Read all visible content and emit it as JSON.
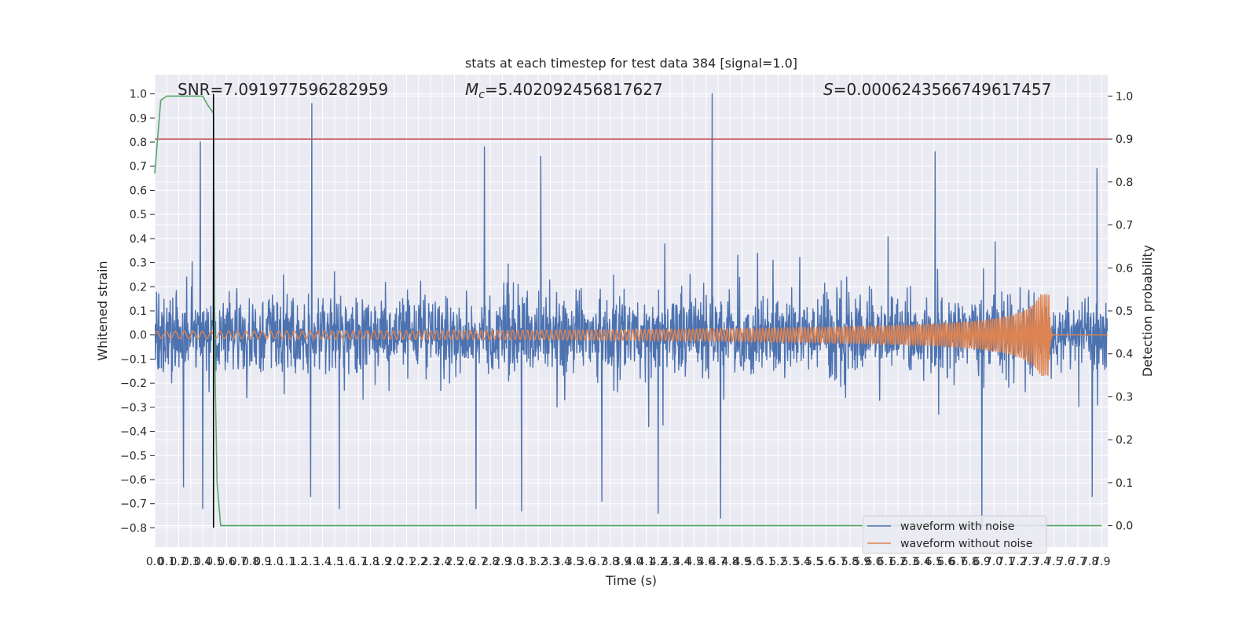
{
  "chart_data": {
    "type": "line",
    "title": "stats at each timestep for test data 384 [signal=1.0]",
    "xlabel": "Time (s)",
    "ylabel": "Whitened strain",
    "ylabel_right": "Detection probability",
    "xlim": [
      0.0,
      7.95
    ],
    "ylim": [
      -0.88,
      1.08
    ],
    "ylim_right": [
      -0.05,
      1.05
    ],
    "x_ticks": [
      0.0,
      0.1,
      0.2,
      0.3,
      0.4,
      0.5,
      0.6,
      0.7,
      0.8,
      0.9,
      1.0,
      1.1,
      1.2,
      1.3,
      1.4,
      1.5,
      1.6,
      1.7,
      1.8,
      1.9,
      2.0,
      2.1,
      2.2,
      2.3,
      2.4,
      2.5,
      2.6,
      2.7,
      2.8,
      2.9,
      3.0,
      3.1,
      3.2,
      3.3,
      3.4,
      3.5,
      3.6,
      3.7,
      3.8,
      3.9,
      4.0,
      4.1,
      4.2,
      4.3,
      4.4,
      4.5,
      4.6,
      4.7,
      4.8,
      4.9,
      5.0,
      5.1,
      5.2,
      5.3,
      5.4,
      5.5,
      5.6,
      5.7,
      5.8,
      5.9,
      6.0,
      6.1,
      6.2,
      6.3,
      6.4,
      6.5,
      6.6,
      6.7,
      6.8,
      6.9,
      7.0,
      7.1,
      7.2,
      7.3,
      7.4,
      7.5,
      7.6,
      7.7,
      7.8,
      7.9
    ],
    "y_ticks": [
      -0.8,
      -0.7,
      -0.6,
      -0.5,
      -0.4,
      -0.3,
      -0.2,
      -0.1,
      0.0,
      0.1,
      0.2,
      0.3,
      0.4,
      0.5,
      0.6,
      0.7,
      0.8,
      0.9,
      1.0
    ],
    "y_ticks_right": [
      0.0,
      0.1,
      0.2,
      0.3,
      0.4,
      0.5,
      0.6,
      0.7,
      0.8,
      0.9,
      1.0
    ],
    "grid": true,
    "legend_position": "lower-right",
    "annotations": {
      "snr": "SNR=7.091977596282959",
      "mc_symbol": "M",
      "mc_sub": "c",
      "mc_value": "=5.402092456817627",
      "s_symbol": "S",
      "s_value": "=0.0006243566749617457"
    },
    "series": [
      {
        "name": "waveform with noise",
        "color": "#4c72b0",
        "note_kind": "noise",
        "amplitude_envelope": 0.42,
        "peaks": [
          {
            "x": 0.38,
            "y": 0.8
          },
          {
            "x": 0.49,
            "y": 0.81
          },
          {
            "x": 1.31,
            "y": 0.96
          },
          {
            "x": 2.75,
            "y": 0.78
          },
          {
            "x": 3.22,
            "y": 0.74
          },
          {
            "x": 4.65,
            "y": 1.0
          },
          {
            "x": 6.51,
            "y": 0.76
          },
          {
            "x": 7.86,
            "y": 0.69
          },
          {
            "x": 0.24,
            "y": -0.63
          },
          {
            "x": 0.4,
            "y": -0.72
          },
          {
            "x": 1.3,
            "y": -0.67
          },
          {
            "x": 1.54,
            "y": -0.72
          },
          {
            "x": 2.68,
            "y": -0.72
          },
          {
            "x": 3.06,
            "y": -0.73
          },
          {
            "x": 3.73,
            "y": -0.69
          },
          {
            "x": 4.2,
            "y": -0.74
          },
          {
            "x": 4.72,
            "y": -0.76
          },
          {
            "x": 6.9,
            "y": -0.8
          },
          {
            "x": 7.82,
            "y": -0.67
          }
        ]
      },
      {
        "name": "waveform without noise",
        "color": "#dd8452",
        "note_kind": "chirp",
        "start_amplitude": 0.015,
        "peak_amplitude": 0.17,
        "merger_time": 7.46,
        "start_frequency_hz": 13,
        "end_frequency_hz": 60
      },
      {
        "name": "",
        "axis": "right",
        "color": "#55a868",
        "x": [
          0.0,
          0.05,
          0.1,
          0.2,
          0.3,
          0.4,
          0.44,
          0.49,
          0.5,
          0.52,
          0.55,
          0.6,
          2.9,
          3.0,
          7.9
        ],
        "values": [
          0.82,
          0.99,
          1.0,
          1.0,
          1.0,
          1.0,
          0.98,
          0.96,
          0.4,
          0.1,
          0.0,
          0.0,
          0.0,
          0.0,
          0.0
        ]
      }
    ],
    "threshold_line": {
      "axis": "right",
      "value": 0.9,
      "color": "#c44e52"
    },
    "vertical_line": {
      "x": 0.49,
      "y_from": -0.8,
      "y_to": 1.0,
      "color": "#000000"
    }
  }
}
